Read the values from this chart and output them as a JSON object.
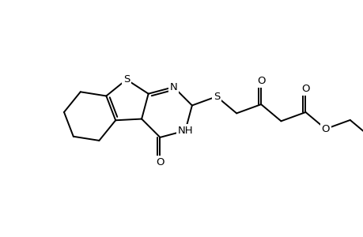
{
  "bg_color": "#ffffff",
  "line_color": "#000000",
  "lw": 1.4,
  "fs": 9.5,
  "figsize": [
    4.6,
    3.0
  ],
  "dpi": 100,
  "xlim": [
    0,
    460
  ],
  "ylim": [
    0,
    300
  ],
  "BL": 33
}
